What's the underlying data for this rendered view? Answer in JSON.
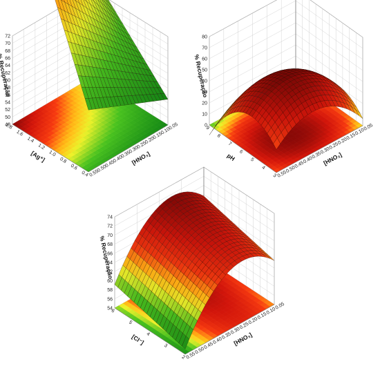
{
  "chart_data": [
    {
      "type": "surface3d",
      "id": "ag",
      "zlabel": "% Recuperação",
      "xlabel": "[HNO₃]",
      "ylabel": "[Ag⁺]",
      "x_ticks": [
        "0.55",
        "0.50",
        "0.45",
        "0.40",
        "0.35",
        "0.30",
        "0.25",
        "0.20",
        "0.15",
        "0.10",
        "0.05"
      ],
      "y_ticks": [
        "1.8",
        "1.6",
        "1.4",
        "1.2",
        "1.0",
        "0.8",
        "0.6",
        "0.4"
      ],
      "z_ticks": [
        "72",
        "70",
        "68",
        "66",
        "64",
        "62",
        "60",
        "58",
        "56",
        "54",
        "52",
        "50",
        "48"
      ],
      "xlim": [
        0.05,
        0.55
      ],
      "ylim": [
        0.4,
        1.8
      ],
      "zlim": [
        48,
        72
      ],
      "surface": {
        "model": "quadratic",
        "coef": {
          "b0": 48.8,
          "bx": 0.5,
          "by": 13.0,
          "bxx": 0.0,
          "byy": 0.0,
          "bxy": 48.0
        }
      }
    },
    {
      "type": "surface3d",
      "id": "ph",
      "zlabel": "% Recuperação",
      "xlabel": "[HNO₃]",
      "ylabel": "pH",
      "x_ticks": [
        "0.55",
        "0.50",
        "0.45",
        "0.40",
        "0.35",
        "0.30",
        "0.25",
        "0.20",
        "0.15",
        "0.10",
        "0.05"
      ],
      "y_ticks": [
        "9",
        "8",
        "7",
        "6",
        "5",
        "4",
        "3"
      ],
      "z_ticks": [
        "80",
        "70",
        "60",
        "50",
        "40",
        "30",
        "20",
        "10",
        "0"
      ],
      "xlim": [
        0.05,
        0.55
      ],
      "ylim": [
        3,
        9
      ],
      "zlim": [
        0,
        80
      ],
      "surface": {
        "model": "quadratic",
        "coef": {
          "b0": -71.2,
          "bx": 251.0,
          "by": 31.0,
          "bxx": -370.0,
          "byy": -3.0,
          "bxy": 0.0
        }
      }
    },
    {
      "type": "surface3d",
      "id": "cl",
      "zlabel": "% Recuperação",
      "xlabel": "[HNO₃]",
      "ylabel": "[Cl⁻]",
      "x_ticks": [
        "0.55",
        "0.50",
        "0.45",
        "0.40",
        "0.35",
        "0.30",
        "0.25",
        "0.20",
        "0.15",
        "0.10",
        "0.05"
      ],
      "y_ticks": [
        "6",
        "5",
        "4",
        "3",
        "2"
      ],
      "z_ticks": [
        "74",
        "72",
        "70",
        "68",
        "66",
        "64",
        "62",
        "60",
        "58",
        "56",
        "54"
      ],
      "xlim": [
        0.05,
        0.55
      ],
      "ylim": [
        2,
        6
      ],
      "zlim": [
        54,
        74
      ],
      "surface": {
        "model": "quadratic",
        "coef": {
          "b0": 59.2,
          "bx": 55.0,
          "by": 1.0,
          "bxx": -120.0,
          "byy": 0.0,
          "bxy": 0.0
        }
      }
    }
  ]
}
